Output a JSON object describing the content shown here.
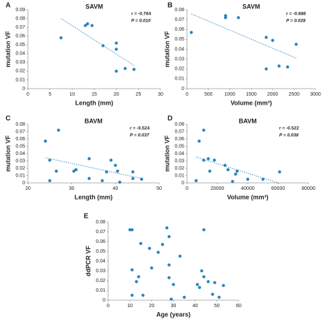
{
  "chart_data": [
    {
      "type": "scatter",
      "panel": "A",
      "title": "SAVM",
      "x_label": "Length (mm)",
      "y_label": "mutation VF",
      "annotations": [
        "r = -0.764",
        "P = 0.010"
      ],
      "trendline": true,
      "color": "#2b83ba",
      "x": [
        7.5,
        13,
        13.5,
        14.5,
        17,
        20,
        20,
        20,
        22,
        24
      ],
      "y": [
        0.058,
        0.072,
        0.074,
        0.072,
        0.049,
        0.052,
        0.045,
        0.02,
        0.023,
        0.022
      ],
      "xlim": [
        0,
        30
      ],
      "xticks": [
        0,
        5,
        10,
        15,
        20,
        25,
        30
      ],
      "ylim": [
        0,
        0.09
      ],
      "yticks": [
        0,
        0.01,
        0.02,
        0.03,
        0.04,
        0.05,
        0.06,
        0.07,
        0.08,
        0.09
      ]
    },
    {
      "type": "scatter",
      "panel": "B",
      "title": "SAVM",
      "x_label": "Volume (mm³)",
      "y_label": "mutation VF",
      "annotations": [
        "r = -0.686",
        "P = 0.028"
      ],
      "trendline": true,
      "color": "#2b83ba",
      "x": [
        100,
        900,
        900,
        1200,
        1850,
        2000,
        1850,
        2150,
        2350,
        2550
      ],
      "y": [
        0.057,
        0.072,
        0.074,
        0.072,
        0.052,
        0.049,
        0.02,
        0.023,
        0.022,
        0.045
      ],
      "xlim": [
        0,
        3000
      ],
      "xticks": [
        0,
        500,
        1000,
        1500,
        2000,
        2500,
        3000
      ],
      "ylim": [
        0,
        0.08
      ],
      "yticks": [
        0,
        0.01,
        0.02,
        0.03,
        0.04,
        0.05,
        0.06,
        0.07,
        0.08
      ]
    },
    {
      "type": "scatter",
      "panel": "C",
      "title": "BAVM",
      "x_label": "Length (mm)",
      "y_label": "mutation VF",
      "annotations": [
        "r = -0.524",
        "P = 0.037"
      ],
      "trendline": true,
      "color": "#2b83ba",
      "x": [
        24,
        25,
        25,
        27,
        26.5,
        30.5,
        31,
        34,
        34,
        37,
        38,
        39,
        40,
        40.5,
        41,
        44,
        44,
        46
      ],
      "y": [
        0.057,
        0.031,
        0.003,
        0.072,
        0.016,
        0.016,
        0.018,
        0.033,
        0.006,
        0.003,
        0.015,
        0.031,
        0.024,
        0.016,
        0.001,
        0.015,
        0.006,
        0.005
      ],
      "xlim": [
        20,
        50
      ],
      "xticks": [
        20,
        30,
        40,
        50
      ],
      "ylim": [
        0,
        0.08
      ],
      "yticks": [
        0,
        0.01,
        0.02,
        0.03,
        0.04,
        0.05,
        0.06,
        0.07,
        0.08
      ]
    },
    {
      "type": "scatter",
      "panel": "D",
      "title": "BAVM",
      "x_label": "Volume (mm³)",
      "y_label": "mutation VF",
      "annotations": [
        "r = -0.522",
        "P = 0.038"
      ],
      "trendline": true,
      "color": "#2b83ba",
      "x": [
        6000,
        8000,
        11000,
        11000,
        14000,
        15000,
        18000,
        25000,
        27000,
        30000,
        32000,
        33000,
        40000,
        50000,
        61000
      ],
      "y": [
        0.003,
        0.057,
        0.072,
        0.031,
        0.033,
        0.016,
        0.031,
        0.024,
        0.018,
        0.002,
        0.012,
        0.016,
        0.005,
        0.005,
        0.015
      ],
      "xlim": [
        0,
        80000
      ],
      "xticks": [
        0,
        20000,
        40000,
        60000,
        80000
      ],
      "ylim": [
        0,
        0.08
      ],
      "yticks": [
        0,
        0.01,
        0.02,
        0.03,
        0.04,
        0.05,
        0.06,
        0.07,
        0.08
      ]
    },
    {
      "type": "scatter",
      "panel": "E",
      "x_label": "Age (years)",
      "y_label": "ddPCR VF",
      "trendline": false,
      "color": "#2b83ba",
      "x": [
        10,
        11,
        11,
        11,
        13,
        14,
        15,
        16,
        19,
        20,
        23,
        25,
        27,
        28,
        28,
        28,
        29,
        30,
        33,
        35,
        41,
        42,
        43,
        44,
        44,
        46,
        48,
        49,
        51,
        53
      ],
      "y": [
        0.072,
        0.072,
        0.031,
        0.005,
        0.019,
        0.024,
        0.058,
        0.005,
        0.053,
        0.033,
        0.049,
        0.057,
        0.074,
        0.023,
        0.065,
        0.036,
        0.001,
        0.016,
        0.045,
        0.003,
        0.016,
        0.013,
        0.03,
        0.072,
        0.024,
        0.019,
        0.006,
        0.018,
        0.003,
        0.015
      ],
      "xlim": [
        0,
        60
      ],
      "xticks": [
        0,
        10,
        20,
        30,
        40,
        50,
        60
      ],
      "ylim": [
        0,
        0.08
      ],
      "yticks": [
        0,
        0.01,
        0.02,
        0.03,
        0.04,
        0.05,
        0.06,
        0.07,
        0.08
      ]
    }
  ]
}
